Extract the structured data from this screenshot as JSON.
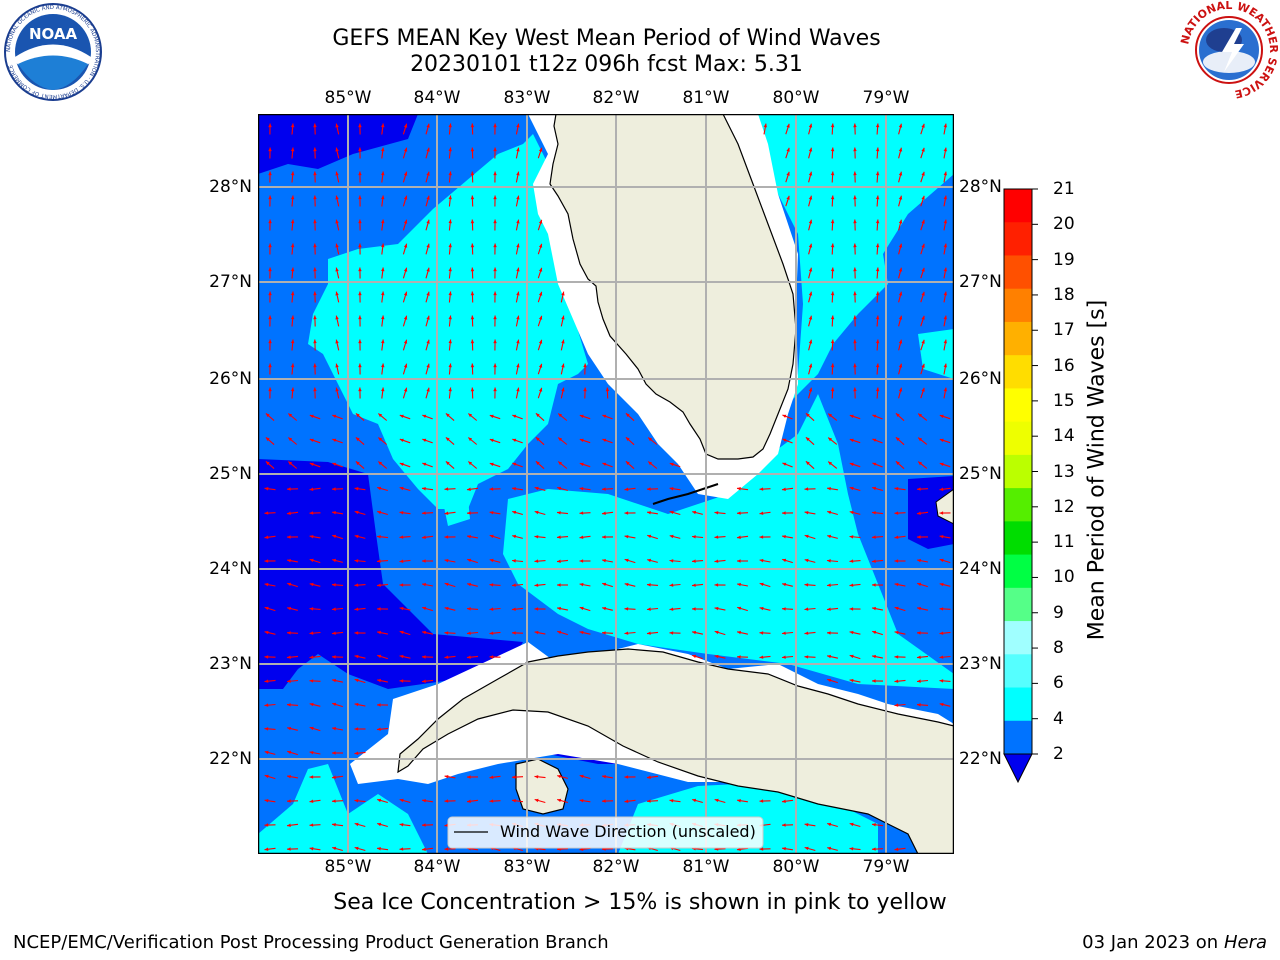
{
  "title": {
    "line1": "GEFS MEAN Key West Mean Period of Wind Waves",
    "line2": "20230101 t12z 096h fcst   Max: 5.31"
  },
  "logos": {
    "noaa_text": "NOAA",
    "noaa_ring": "NATIONAL OCEANIC AND ATMOSPHERIC ADMINISTRATION · U.S. DEPARTMENT OF COMMERCE",
    "nws_ring": "NATIONAL WEATHER SERVICE"
  },
  "map": {
    "lon_labels": [
      "85°W",
      "84°W",
      "83°W",
      "82°W",
      "81°W",
      "80°W",
      "79°W"
    ],
    "lat_labels": [
      "28°N",
      "27°N",
      "26°N",
      "25°N",
      "24°N",
      "23°N",
      "22°N"
    ],
    "legend_label": "Wind Wave Direction (unscaled)",
    "colors": {
      "deep_blue": "#0000ee",
      "mid_blue": "#0073ff",
      "cyan": "#00ffff",
      "land": "#eeeedd",
      "arrow": "#ff0000",
      "grid": "#b0b0b0"
    }
  },
  "colorbar": {
    "title": "Mean Period of Wind Waves [s]",
    "ticks": [
      "21",
      "20",
      "19",
      "18",
      "17",
      "16",
      "15",
      "14",
      "13",
      "12",
      "11",
      "10",
      "9",
      "8",
      "6",
      "4",
      "2"
    ],
    "colors": [
      "#ff0000",
      "#ff2000",
      "#ff5000",
      "#ff8000",
      "#ffb000",
      "#ffdd00",
      "#ffff00",
      "#eeff00",
      "#bbff00",
      "#55ee00",
      "#00dd00",
      "#00ff44",
      "#55ff88",
      "#a0ffff",
      "#55ffff",
      "#00ffff",
      "#0073ff"
    ],
    "extend_color": "#0000ee"
  },
  "ice_note": "Sea Ice Concentration > 15% is shown in pink to yellow",
  "footer": {
    "left": "NCEP/EMC/Verification Post Processing Product Generation Branch",
    "right_date": "03 Jan 2023 on ",
    "right_host": "Hera"
  }
}
